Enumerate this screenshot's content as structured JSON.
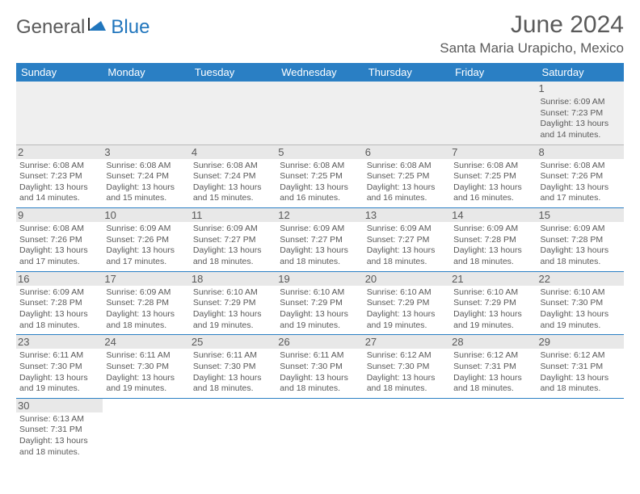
{
  "logo": {
    "general": "General",
    "blue": "Blue"
  },
  "title": "June 2024",
  "location": "Santa Maria Urapicho, Mexico",
  "colors": {
    "header_bg": "#2a7fc4",
    "header_text": "#ffffff",
    "text": "#595959",
    "day_bg": "#e8e8e8",
    "border": "#2a7fc4",
    "logo_gray": "#5a5a5a",
    "logo_blue": "#2176bd"
  },
  "weekdays": [
    "Sunday",
    "Monday",
    "Tuesday",
    "Wednesday",
    "Thursday",
    "Friday",
    "Saturday"
  ],
  "days": [
    {
      "n": 1,
      "sr": "6:09 AM",
      "ss": "7:23 PM",
      "dl": "13 hours and 14 minutes."
    },
    {
      "n": 2,
      "sr": "6:08 AM",
      "ss": "7:23 PM",
      "dl": "13 hours and 14 minutes."
    },
    {
      "n": 3,
      "sr": "6:08 AM",
      "ss": "7:24 PM",
      "dl": "13 hours and 15 minutes."
    },
    {
      "n": 4,
      "sr": "6:08 AM",
      "ss": "7:24 PM",
      "dl": "13 hours and 15 minutes."
    },
    {
      "n": 5,
      "sr": "6:08 AM",
      "ss": "7:25 PM",
      "dl": "13 hours and 16 minutes."
    },
    {
      "n": 6,
      "sr": "6:08 AM",
      "ss": "7:25 PM",
      "dl": "13 hours and 16 minutes."
    },
    {
      "n": 7,
      "sr": "6:08 AM",
      "ss": "7:25 PM",
      "dl": "13 hours and 16 minutes."
    },
    {
      "n": 8,
      "sr": "6:08 AM",
      "ss": "7:26 PM",
      "dl": "13 hours and 17 minutes."
    },
    {
      "n": 9,
      "sr": "6:08 AM",
      "ss": "7:26 PM",
      "dl": "13 hours and 17 minutes."
    },
    {
      "n": 10,
      "sr": "6:09 AM",
      "ss": "7:26 PM",
      "dl": "13 hours and 17 minutes."
    },
    {
      "n": 11,
      "sr": "6:09 AM",
      "ss": "7:27 PM",
      "dl": "13 hours and 18 minutes."
    },
    {
      "n": 12,
      "sr": "6:09 AM",
      "ss": "7:27 PM",
      "dl": "13 hours and 18 minutes."
    },
    {
      "n": 13,
      "sr": "6:09 AM",
      "ss": "7:27 PM",
      "dl": "13 hours and 18 minutes."
    },
    {
      "n": 14,
      "sr": "6:09 AM",
      "ss": "7:28 PM",
      "dl": "13 hours and 18 minutes."
    },
    {
      "n": 15,
      "sr": "6:09 AM",
      "ss": "7:28 PM",
      "dl": "13 hours and 18 minutes."
    },
    {
      "n": 16,
      "sr": "6:09 AM",
      "ss": "7:28 PM",
      "dl": "13 hours and 18 minutes."
    },
    {
      "n": 17,
      "sr": "6:09 AM",
      "ss": "7:28 PM",
      "dl": "13 hours and 18 minutes."
    },
    {
      "n": 18,
      "sr": "6:10 AM",
      "ss": "7:29 PM",
      "dl": "13 hours and 19 minutes."
    },
    {
      "n": 19,
      "sr": "6:10 AM",
      "ss": "7:29 PM",
      "dl": "13 hours and 19 minutes."
    },
    {
      "n": 20,
      "sr": "6:10 AM",
      "ss": "7:29 PM",
      "dl": "13 hours and 19 minutes."
    },
    {
      "n": 21,
      "sr": "6:10 AM",
      "ss": "7:29 PM",
      "dl": "13 hours and 19 minutes."
    },
    {
      "n": 22,
      "sr": "6:10 AM",
      "ss": "7:30 PM",
      "dl": "13 hours and 19 minutes."
    },
    {
      "n": 23,
      "sr": "6:11 AM",
      "ss": "7:30 PM",
      "dl": "13 hours and 19 minutes."
    },
    {
      "n": 24,
      "sr": "6:11 AM",
      "ss": "7:30 PM",
      "dl": "13 hours and 19 minutes."
    },
    {
      "n": 25,
      "sr": "6:11 AM",
      "ss": "7:30 PM",
      "dl": "13 hours and 18 minutes."
    },
    {
      "n": 26,
      "sr": "6:11 AM",
      "ss": "7:30 PM",
      "dl": "13 hours and 18 minutes."
    },
    {
      "n": 27,
      "sr": "6:12 AM",
      "ss": "7:30 PM",
      "dl": "13 hours and 18 minutes."
    },
    {
      "n": 28,
      "sr": "6:12 AM",
      "ss": "7:31 PM",
      "dl": "13 hours and 18 minutes."
    },
    {
      "n": 29,
      "sr": "6:12 AM",
      "ss": "7:31 PM",
      "dl": "13 hours and 18 minutes."
    },
    {
      "n": 30,
      "sr": "6:13 AM",
      "ss": "7:31 PM",
      "dl": "13 hours and 18 minutes."
    }
  ],
  "labels": {
    "sunrise": "Sunrise:",
    "sunset": "Sunset:",
    "daylight": "Daylight:"
  },
  "layout": {
    "first_day_column": 6,
    "cols": 7
  }
}
